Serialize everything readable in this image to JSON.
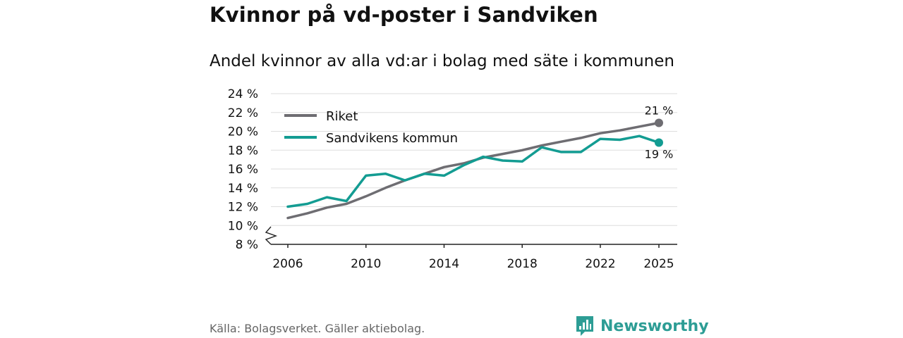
{
  "title": "Kvinnor på vd-poster i Sandviken",
  "subtitle": "Andel kvinnor av alla vd:ar i bolag med säte i kommunen",
  "source": "Källa: Bolagsverket. Gäller aktiebolag.",
  "brand": {
    "name": "Newsworthy",
    "icon": "newsworthy-logo-icon",
    "color": "#2d9d95"
  },
  "chart_data": {
    "type": "line",
    "xlabel": "",
    "ylabel": "",
    "xlim": [
      2005,
      2026
    ],
    "ylim": [
      8,
      24
    ],
    "xticks": [
      2006,
      2010,
      2014,
      2018,
      2022,
      2025
    ],
    "xtick_labels": [
      "2006",
      "2010",
      "2014",
      "2018",
      "2022",
      "2025"
    ],
    "yticks": [
      8,
      10,
      12,
      14,
      16,
      18,
      20,
      22,
      24
    ],
    "ytick_labels": [
      "8 %",
      "10 %",
      "12 %",
      "14 %",
      "16 %",
      "18 %",
      "20 %",
      "22 %",
      "24 %"
    ],
    "axis_break": true,
    "grid": true,
    "legend_position": "top-left",
    "x": [
      2006,
      2007,
      2008,
      2009,
      2010,
      2011,
      2012,
      2013,
      2014,
      2015,
      2016,
      2017,
      2018,
      2019,
      2020,
      2021,
      2022,
      2023,
      2024,
      2025
    ],
    "series": [
      {
        "name": "Riket",
        "color": "#6e6d72",
        "values": [
          10.8,
          11.3,
          11.9,
          12.3,
          13.1,
          14.0,
          14.8,
          15.5,
          16.2,
          16.6,
          17.2,
          17.6,
          18.0,
          18.5,
          18.9,
          19.3,
          19.8,
          20.1,
          20.5,
          20.9
        ],
        "end_label": "21 %"
      },
      {
        "name": "Sandvikens kommun",
        "color": "#139c92",
        "values": [
          12.0,
          12.3,
          13.0,
          12.6,
          15.3,
          15.5,
          14.8,
          15.5,
          15.3,
          16.4,
          17.3,
          16.9,
          16.8,
          18.3,
          17.8,
          17.8,
          19.2,
          19.1,
          19.5,
          18.8
        ],
        "end_label": "19 %"
      }
    ]
  }
}
